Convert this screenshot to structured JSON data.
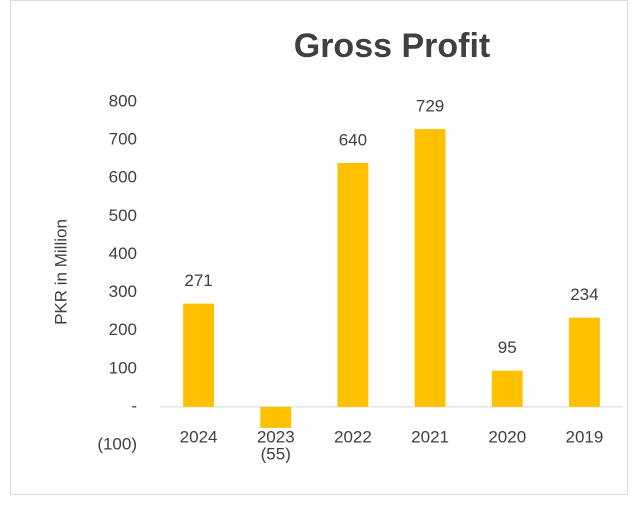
{
  "chart_data": {
    "type": "bar",
    "title": "Gross Profit",
    "y_label": "PKR in Million",
    "categories": [
      "2024",
      "2023",
      "2022",
      "2021",
      "2020",
      "2019"
    ],
    "values": [
      271,
      -55,
      640,
      729,
      95,
      234
    ],
    "value_labels": [
      "271",
      "(55)",
      "640",
      "729",
      "95",
      "234"
    ],
    "color": "#ffc000",
    "ylim": [
      -100,
      800
    ],
    "yticks": [
      {
        "value": -100,
        "label": "(100)"
      },
      {
        "value": 0,
        "label": "-"
      },
      100,
      200,
      300,
      400,
      500,
      600,
      700,
      800
    ],
    "grid": false
  }
}
